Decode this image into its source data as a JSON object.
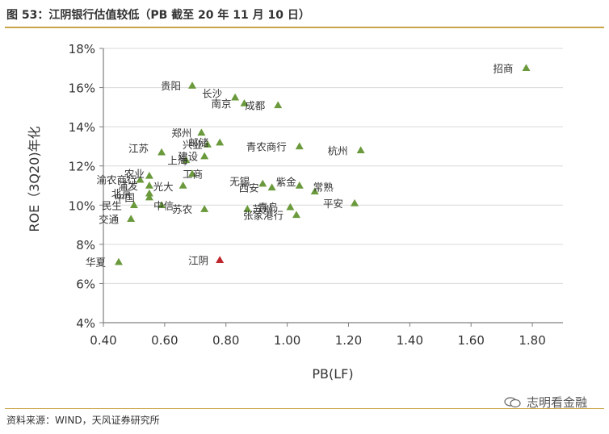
{
  "header": {
    "title": "图 53：江阴银行估值较低（PB 截至 20 年 11 月 10 日）"
  },
  "footer": {
    "source": "资料来源：WIND，天风证券研究所"
  },
  "watermark": {
    "text": "志明看金融",
    "icon": "wechat-icon"
  },
  "colors": {
    "point": "#6a9a3c",
    "highlight": "#c0262d",
    "axis": "#7f7f7f",
    "grid": "#d9d9d9",
    "rule": "#c9a54a"
  },
  "chart_data": {
    "type": "scatter",
    "xlabel": "PB(LF)",
    "ylabel": "ROE（3Q20)年化",
    "xlim": [
      0.4,
      1.9
    ],
    "ylim": [
      4,
      18
    ],
    "x_ticks": [
      0.4,
      0.6,
      0.8,
      1.0,
      1.2,
      1.4,
      1.6,
      1.8
    ],
    "x_tick_labels": [
      "0.40",
      "0.60",
      "0.80",
      "1.00",
      "1.20",
      "1.40",
      "1.60",
      "1.80"
    ],
    "y_ticks": [
      4,
      6,
      8,
      10,
      12,
      14,
      16,
      18
    ],
    "y_tick_labels": [
      "4%",
      "6%",
      "8%",
      "10%",
      "12%",
      "14%",
      "16%",
      "18%"
    ],
    "grid": "horizontal",
    "marker": "triangle",
    "points": [
      {
        "label": "招商",
        "x": 1.78,
        "y": 17.0
      },
      {
        "label": "贵阳",
        "x": 0.69,
        "y": 16.1
      },
      {
        "label": "长沙",
        "x": 0.83,
        "y": 15.5
      },
      {
        "label": "南京",
        "x": 0.86,
        "y": 15.2
      },
      {
        "label": "成都",
        "x": 0.97,
        "y": 15.1
      },
      {
        "label": "郑州",
        "x": 0.72,
        "y": 13.7
      },
      {
        "label": "兴业",
        "x": 0.74,
        "y": 13.1
      },
      {
        "label": "邮储",
        "x": 0.78,
        "y": 13.2
      },
      {
        "label": "青农商行",
        "x": 1.04,
        "y": 13.0
      },
      {
        "label": "杭州",
        "x": 1.24,
        "y": 12.8
      },
      {
        "label": "江苏",
        "x": 0.59,
        "y": 12.7
      },
      {
        "label": "建设",
        "x": 0.73,
        "y": 12.5
      },
      {
        "label": "上海",
        "x": 0.67,
        "y": 12.3
      },
      {
        "label": "工商",
        "x": 0.69,
        "y": 11.6
      },
      {
        "label": "农业",
        "x": 0.55,
        "y": 11.5
      },
      {
        "label": "渝农商行",
        "x": 0.52,
        "y": 11.3
      },
      {
        "label": "浦发",
        "x": 0.55,
        "y": 11.0
      },
      {
        "label": "光大",
        "x": 0.66,
        "y": 11.0
      },
      {
        "label": "无锡",
        "x": 0.92,
        "y": 11.1
      },
      {
        "label": "西安",
        "x": 0.95,
        "y": 10.9
      },
      {
        "label": "紫金",
        "x": 1.04,
        "y": 11.0
      },
      {
        "label": "常熟",
        "x": 1.09,
        "y": 10.7
      },
      {
        "label": "北京",
        "x": 0.55,
        "y": 10.6
      },
      {
        "label": "中国",
        "x": 0.55,
        "y": 10.4
      },
      {
        "label": "民生",
        "x": 0.5,
        "y": 10.0
      },
      {
        "label": "中信",
        "x": 0.59,
        "y": 10.0
      },
      {
        "label": "苏农",
        "x": 0.73,
        "y": 9.8
      },
      {
        "label": "苏州",
        "x": 0.87,
        "y": 9.8
      },
      {
        "label": "青岛",
        "x": 1.01,
        "y": 9.9
      },
      {
        "label": "张家港行",
        "x": 1.03,
        "y": 9.5
      },
      {
        "label": "平安",
        "x": 1.22,
        "y": 10.1
      },
      {
        "label": "交通",
        "x": 0.49,
        "y": 9.3
      },
      {
        "label": "华夏",
        "x": 0.45,
        "y": 7.1
      },
      {
        "label": "江阴",
        "x": 0.78,
        "y": 7.2,
        "highlight": true
      }
    ]
  }
}
